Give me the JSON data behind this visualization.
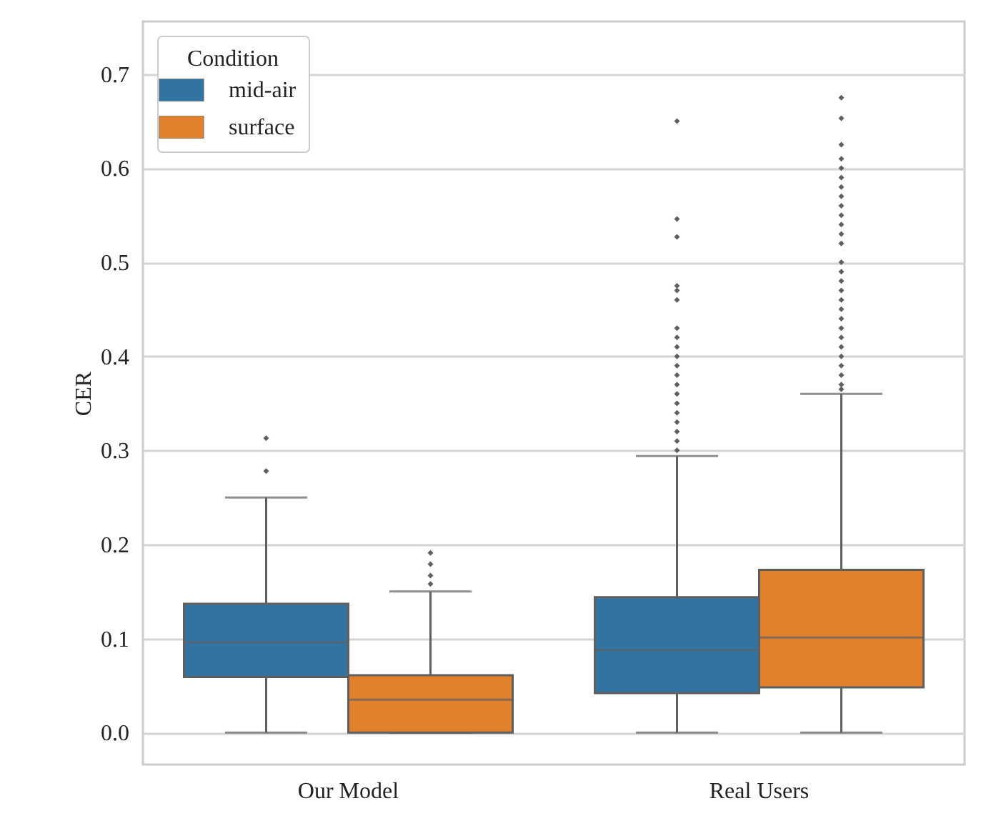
{
  "chart_data": {
    "type": "box",
    "ylabel": "CER",
    "legend_title": "Condition",
    "legend": "top left",
    "grid": "y",
    "marker": "diamond",
    "categories": [
      "Our Model",
      "Real Users"
    ],
    "ylim": [
      -0.034,
      0.756
    ],
    "yticks": [
      {
        "value": 0,
        "label": "0.0"
      },
      {
        "value": 0.1,
        "label": "0.1"
      },
      {
        "value": 0.2,
        "label": "0.2"
      },
      {
        "value": 0.3,
        "label": "0.3"
      },
      {
        "value": 0.4,
        "label": "0.4"
      },
      {
        "value": 0.5,
        "label": "0.5"
      },
      {
        "value": 0.6,
        "label": "0.6"
      },
      {
        "value": 0.7,
        "label": "0.7"
      }
    ],
    "series": [
      {
        "name": "mid-air",
        "color": "#3274a1",
        "boxes": [
          {
            "low": 0,
            "q1": 0.059,
            "median": 0.096,
            "q3": 0.137,
            "high": 0.25,
            "outliers": [
              0.278,
              0.313
            ]
          },
          {
            "low": 0,
            "q1": 0.042,
            "median": 0.088,
            "q3": 0.144,
            "high": 0.294,
            "outliers": [
              0.3,
              0.31,
              0.32,
              0.33,
              0.34,
              0.35,
              0.36,
              0.37,
              0.38,
              0.39,
              0.4,
              0.41,
              0.42,
              0.43,
              0.46,
              0.47,
              0.475,
              0.527,
              0.546,
              0.65
            ]
          }
        ]
      },
      {
        "name": "surface",
        "color": "#e1812c",
        "boxes": [
          {
            "low": 0,
            "q1": 0,
            "median": 0.035,
            "q3": 0.061,
            "high": 0.15,
            "outliers": [
              0.158,
              0.167,
              0.179,
              0.191
            ]
          },
          {
            "low": 0,
            "q1": 0.048,
            "median": 0.101,
            "q3": 0.173,
            "high": 0.36,
            "outliers": [
              0.365,
              0.37,
              0.38,
              0.39,
              0.4,
              0.41,
              0.42,
              0.43,
              0.44,
              0.45,
              0.46,
              0.47,
              0.48,
              0.49,
              0.5,
              0.52,
              0.53,
              0.54,
              0.55,
              0.56,
              0.57,
              0.58,
              0.59,
              0.6,
              0.61,
              0.625,
              0.653,
              0.675
            ]
          }
        ]
      }
    ]
  }
}
